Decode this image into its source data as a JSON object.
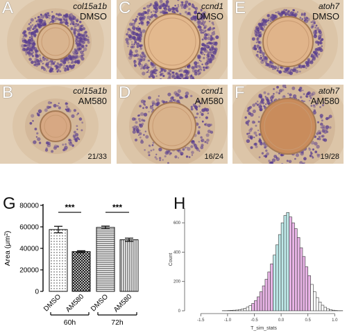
{
  "panels": [
    {
      "letter": "A",
      "gene": "col15a1b",
      "condition": "DMSO",
      "ratio": ""
    },
    {
      "letter": "C",
      "gene": "ccnd1",
      "condition": "DMSO",
      "ratio": ""
    },
    {
      "letter": "E",
      "gene": "atoh7",
      "condition": "DMSO",
      "ratio": ""
    },
    {
      "letter": "B",
      "gene": "col15a1b",
      "condition": "AM580",
      "ratio": "21/33"
    },
    {
      "letter": "D",
      "gene": "ccnd1",
      "condition": "AM580",
      "ratio": "16/24"
    },
    {
      "letter": "F",
      "gene": "atoh7",
      "condition": "AM580",
      "ratio": "19/28"
    }
  ],
  "panel_g": {
    "letter": "G"
  },
  "panel_h": {
    "letter": "H"
  },
  "colors": {
    "purple": "#5a3f8f",
    "magenta": "#e8b4e6",
    "cyan": "#bfeaea",
    "tissue": "#e6d2b8"
  },
  "chart_data": [
    {
      "type": "bar",
      "categories": [
        "DMSO",
        "AM580",
        "DMSO",
        "AM580"
      ],
      "groups": [
        "60h",
        "72h"
      ],
      "values": [
        57500,
        37000,
        59500,
        48000
      ],
      "errors": [
        3000,
        800,
        1200,
        1500
      ],
      "ylabel_prefix": "Area (",
      "ylabel_unit": "μm",
      "ylabel_sup": "2",
      "ylabel_suffix": ")",
      "ylim": [
        0,
        80000
      ],
      "yticks": [
        "0",
        "20000",
        "40000",
        "60000",
        "80000"
      ],
      "ytick_values": [
        0,
        20000,
        40000,
        60000,
        80000
      ],
      "significance": [
        "***",
        "***"
      ],
      "patterns": [
        "dots",
        "crosshatch",
        "horizontal",
        "vertical"
      ]
    },
    {
      "type": "bar",
      "xlabel": "T_sim_stats",
      "ylabel": "Count",
      "xlim": [
        -1.75,
        1.1
      ],
      "ylim": [
        0,
        700
      ],
      "xticks": [
        "-1.5",
        "-1.0",
        "-0.5",
        "0.0",
        "0.5",
        "1.0"
      ],
      "xtick_values": [
        -1.5,
        -1.0,
        -0.5,
        0.0,
        0.5,
        1.0
      ],
      "yticks": [
        "0",
        "200",
        "400",
        "600"
      ],
      "ytick_values": [
        0,
        200,
        400,
        600
      ],
      "bin_width": 0.05,
      "bins_start": -1.6,
      "counts": [
        0,
        0,
        0,
        0,
        0,
        0,
        0,
        0,
        0,
        0,
        1,
        1,
        2,
        3,
        4,
        5,
        8,
        12,
        17,
        25,
        35,
        50,
        70,
        95,
        130,
        170,
        215,
        265,
        320,
        380,
        450,
        520,
        600,
        650,
        670,
        640,
        600,
        560,
        500,
        430,
        370,
        300,
        240,
        180,
        130,
        90,
        60,
        38,
        24,
        14,
        8,
        4,
        2,
        1,
        1,
        0,
        0,
        0
      ],
      "highlight_range": [
        -0.55,
        0.55
      ],
      "center_range": [
        -0.15,
        0.15
      ]
    }
  ]
}
